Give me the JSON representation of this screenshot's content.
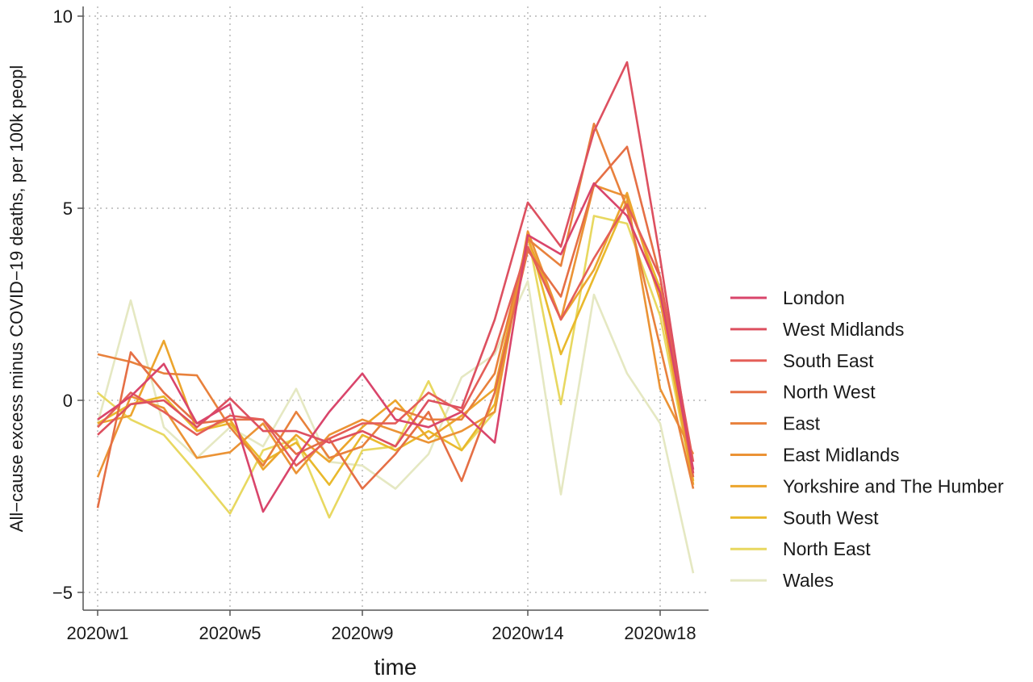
{
  "chart_data": {
    "type": "line",
    "xlabel": "time",
    "ylabel": "All−cause excess minus COVID−19 deaths, per 100k peopl",
    "x": [
      "2020w1",
      "2020w2",
      "2020w3",
      "2020w4",
      "2020w5",
      "2020w6",
      "2020w7",
      "2020w8",
      "2020w9",
      "2020w10",
      "2020w11",
      "2020w12",
      "2020w13",
      "2020w14",
      "2020w15",
      "2020w16",
      "2020w17",
      "2020w18",
      "2020w19"
    ],
    "x_tick_labels": [
      "2020w1",
      "2020w5",
      "2020w9",
      "2020w14",
      "2020w18"
    ],
    "ylim": [
      -5.5,
      10
    ],
    "y_ticks": [
      -5,
      0,
      5,
      10
    ],
    "y_tick_labels": [
      "−5",
      "0",
      "5",
      "10"
    ],
    "grid": true,
    "legend_position": "right",
    "series": [
      {
        "name": "London",
        "color": "#d9456b",
        "values": [
          -0.5,
          0.1,
          0.95,
          -0.6,
          -0.1,
          -2.9,
          -1.5,
          -0.3,
          0.7,
          -0.5,
          -0.7,
          -0.3,
          -1.1,
          4.3,
          3.8,
          5.65,
          4.8,
          2.8,
          -1.8
        ]
      },
      {
        "name": "West Midlands",
        "color": "#dd5060",
        "values": [
          -0.9,
          -0.1,
          0.0,
          -0.7,
          0.05,
          -0.8,
          -0.8,
          -1.1,
          -0.8,
          -1.2,
          0.0,
          -0.2,
          2.1,
          5.15,
          4.0,
          7.0,
          8.8,
          3.7,
          -1.9
        ]
      },
      {
        "name": "South East",
        "color": "#e45e58",
        "values": [
          -0.7,
          0.2,
          -0.3,
          -0.9,
          -0.4,
          -0.5,
          -1.7,
          -1.0,
          -0.6,
          -0.6,
          0.2,
          -0.3,
          1.3,
          4.0,
          2.1,
          3.7,
          5.1,
          3.2,
          -1.6
        ]
      },
      {
        "name": "North West",
        "color": "#e56f45",
        "values": [
          -2.8,
          1.25,
          0.2,
          -0.6,
          -0.5,
          -0.5,
          -1.4,
          -1.0,
          -2.3,
          -1.4,
          -0.3,
          -2.1,
          0.2,
          3.9,
          2.7,
          5.6,
          6.6,
          3.2,
          -2.0
        ]
      },
      {
        "name": "East",
        "color": "#e8813c",
        "values": [
          1.2,
          1.0,
          0.7,
          0.65,
          -0.7,
          -1.7,
          -0.3,
          -1.5,
          -1.2,
          -0.2,
          -0.5,
          -0.5,
          0.7,
          4.2,
          3.5,
          7.2,
          5.0,
          1.4,
          -2.3
        ]
      },
      {
        "name": "East Midlands",
        "color": "#eb9335",
        "values": [
          -2.0,
          0.1,
          -0.2,
          -1.5,
          -1.35,
          -0.6,
          -1.9,
          -0.9,
          -0.5,
          -0.8,
          -1.1,
          -0.8,
          -0.3,
          4.4,
          2.1,
          5.6,
          5.3,
          0.3,
          -1.4
        ]
      },
      {
        "name": "Yorkshire and The Humber",
        "color": "#eca52d",
        "values": [
          -0.6,
          -0.4,
          1.55,
          -0.8,
          -0.5,
          -1.8,
          -0.9,
          -1.6,
          -0.7,
          0.0,
          -1.0,
          -0.4,
          0.3,
          4.2,
          2.1,
          3.4,
          5.4,
          2.6,
          -2.2
        ]
      },
      {
        "name": "South West",
        "color": "#e9b92c",
        "values": [
          -0.6,
          -0.1,
          0.1,
          -0.8,
          -0.6,
          -1.6,
          -1.1,
          -2.2,
          -0.9,
          -1.3,
          -0.8,
          -1.3,
          -0.1,
          4.3,
          1.2,
          3.2,
          5.2,
          2.9,
          -2.1
        ]
      },
      {
        "name": "North East",
        "color": "#e8d860",
        "values": [
          0.2,
          -0.5,
          -0.9,
          -1.9,
          -2.95,
          -1.3,
          -1.0,
          -3.05,
          -1.3,
          -1.2,
          0.5,
          -1.3,
          -0.3,
          4.3,
          -0.1,
          4.8,
          4.6,
          2.2,
          -2.2
        ]
      },
      {
        "name": "Wales",
        "color": "#e5e8c2",
        "values": [
          -0.6,
          2.6,
          -0.7,
          -1.5,
          -0.7,
          -1.2,
          0.3,
          -1.6,
          -1.7,
          -2.3,
          -1.4,
          0.6,
          1.2,
          3.1,
          -2.45,
          2.75,
          0.7,
          -0.6,
          -4.5
        ]
      }
    ]
  }
}
